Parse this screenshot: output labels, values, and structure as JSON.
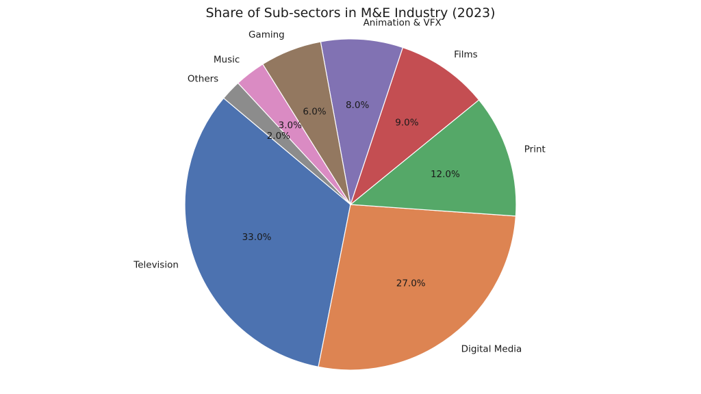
{
  "chart_data": {
    "type": "pie",
    "title": "Share of Sub-sectors in M&E Industry (2023)",
    "start_angle_deg": 140,
    "direction": "counterclockwise",
    "legend": "none",
    "slices": [
      {
        "label": "Television",
        "value": 33.0,
        "pct_text": "33.0%",
        "color": "#4c72b0"
      },
      {
        "label": "Digital Media",
        "value": 27.0,
        "pct_text": "27.0%",
        "color": "#dd8452"
      },
      {
        "label": "Print",
        "value": 12.0,
        "pct_text": "12.0%",
        "color": "#55a868"
      },
      {
        "label": "Films",
        "value": 9.0,
        "pct_text": "9.0%",
        "color": "#c44e52"
      },
      {
        "label": "Animation & VFX",
        "value": 8.0,
        "pct_text": "8.0%",
        "color": "#8172b3"
      },
      {
        "label": "Gaming",
        "value": 6.0,
        "pct_text": "6.0%",
        "color": "#937860"
      },
      {
        "label": "Music",
        "value": 3.0,
        "pct_text": "3.0%",
        "color": "#da8bc3"
      },
      {
        "label": "Others",
        "value": 2.0,
        "pct_text": "2.0%",
        "color": "#8c8c8c"
      }
    ]
  }
}
